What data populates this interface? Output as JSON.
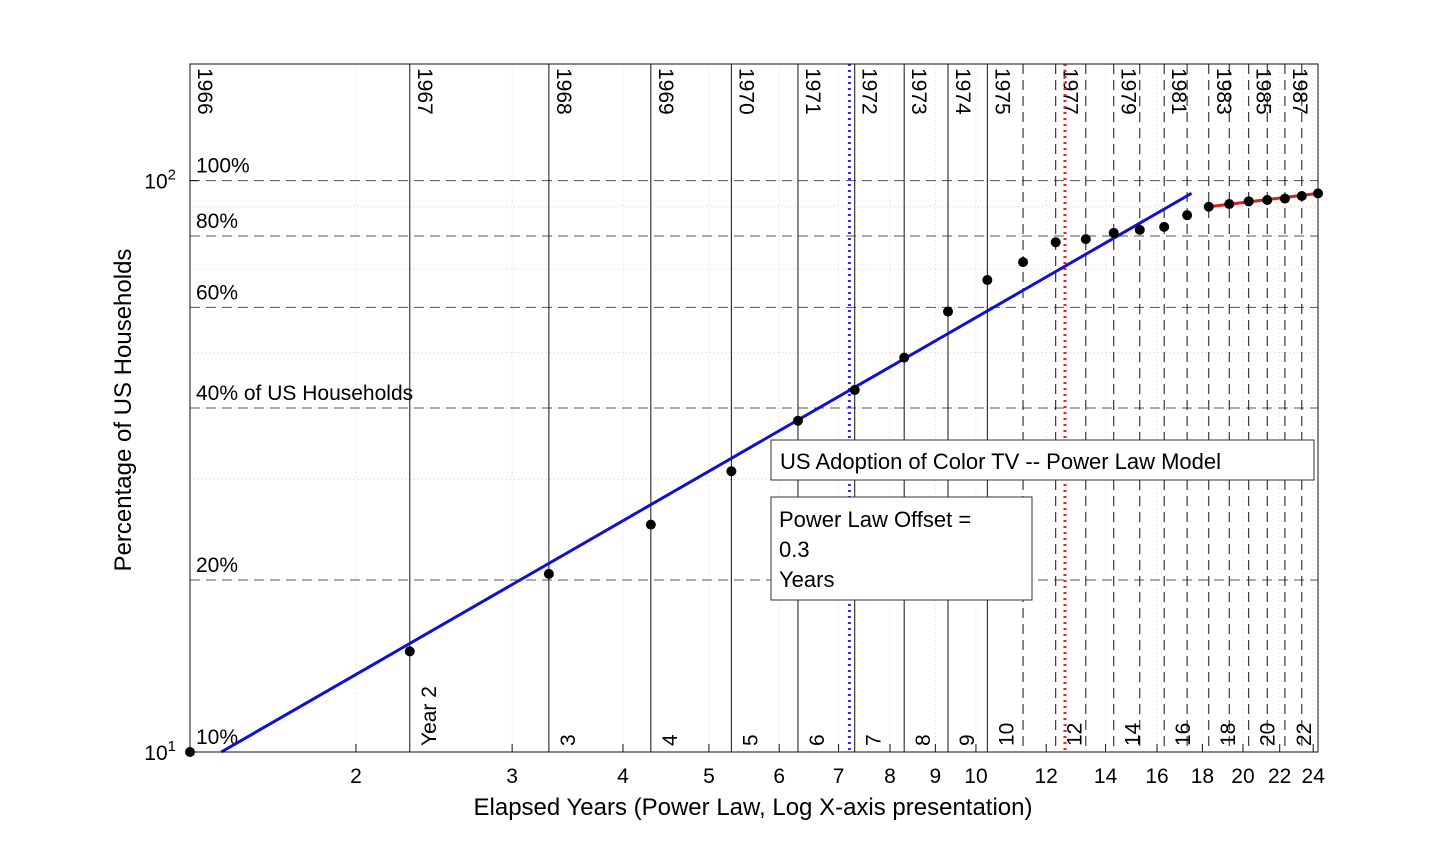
{
  "chart_data": {
    "type": "scatter",
    "title": "US Adoption of Color TV -- Power Law Model",
    "offset_note": [
      "Power Law Offset =",
      "0.3",
      "Years"
    ],
    "xlabel": "Elapsed Years (Power Law, Log X-axis presentation)",
    "ylabel": "Percentage of US Households",
    "x_scale": "log",
    "y_scale": "log",
    "xlim": [
      1.3,
      24.3
    ],
    "ylim": [
      10,
      160
    ],
    "x_ticks": [
      {
        "v": 2,
        "label": "2"
      },
      {
        "v": 3,
        "label": "3"
      },
      {
        "v": 4,
        "label": "4"
      },
      {
        "v": 5,
        "label": "5"
      },
      {
        "v": 6,
        "label": "6"
      },
      {
        "v": 7,
        "label": "7"
      },
      {
        "v": 8,
        "label": "8"
      },
      {
        "v": 9,
        "label": "9"
      },
      {
        "v": 10,
        "label": "10"
      },
      {
        "v": 12,
        "label": "12"
      },
      {
        "v": 14,
        "label": "14"
      },
      {
        "v": 16,
        "label": "16"
      },
      {
        "v": 18,
        "label": "18"
      },
      {
        "v": 20,
        "label": "20"
      },
      {
        "v": 22,
        "label": "22"
      },
      {
        "v": 24,
        "label": "24"
      }
    ],
    "y_ticks": [
      {
        "v": 10,
        "base": "10",
        "exp": "1"
      },
      {
        "v": 100,
        "base": "10",
        "exp": "2"
      }
    ],
    "percent_lines": [
      {
        "v": 100,
        "label": "100%"
      },
      {
        "v": 80,
        "label": "80%"
      },
      {
        "v": 60,
        "label": "60%"
      },
      {
        "v": 40,
        "label": "40% of US Households"
      },
      {
        "v": 20,
        "label": "20%"
      },
      {
        "v": 10,
        "label": "10%"
      }
    ],
    "year_lines": [
      {
        "x": 1.3,
        "year": "1966",
        "elapsed": ""
      },
      {
        "x": 2.3,
        "year": "1967",
        "elapsed": "Year 2"
      },
      {
        "x": 3.3,
        "year": "1968",
        "elapsed": "3"
      },
      {
        "x": 4.3,
        "year": "1969",
        "elapsed": "4"
      },
      {
        "x": 5.3,
        "year": "1970",
        "elapsed": "5"
      },
      {
        "x": 6.3,
        "year": "1971",
        "elapsed": "6"
      },
      {
        "x": 7.3,
        "year": "1972",
        "elapsed": "7"
      },
      {
        "x": 8.3,
        "year": "1973",
        "elapsed": "8"
      },
      {
        "x": 9.3,
        "year": "1974",
        "elapsed": "9"
      },
      {
        "x": 10.3,
        "year": "1975",
        "elapsed": "10"
      },
      {
        "x": 11.3,
        "year": "",
        "elapsed": ""
      },
      {
        "x": 12.3,
        "year": "1977",
        "elapsed": "12"
      },
      {
        "x": 13.3,
        "year": "",
        "elapsed": ""
      },
      {
        "x": 14.3,
        "year": "1979",
        "elapsed": "14"
      },
      {
        "x": 15.3,
        "year": "",
        "elapsed": ""
      },
      {
        "x": 16.3,
        "year": "1981",
        "elapsed": "16"
      },
      {
        "x": 17.3,
        "year": "",
        "elapsed": ""
      },
      {
        "x": 18.3,
        "year": "1983",
        "elapsed": "18"
      },
      {
        "x": 19.3,
        "year": "",
        "elapsed": ""
      },
      {
        "x": 20.3,
        "year": "1985",
        "elapsed": "20"
      },
      {
        "x": 21.3,
        "year": "",
        "elapsed": ""
      },
      {
        "x": 22.3,
        "year": "1987",
        "elapsed": "22"
      },
      {
        "x": 23.3,
        "year": "",
        "elapsed": ""
      },
      {
        "x": 24.3,
        "year": "",
        "elapsed": ""
      }
    ],
    "series": [
      {
        "kind": "points",
        "color": "#000000",
        "x": [
          1.3,
          2.3,
          3.3,
          4.3,
          5.3,
          6.3,
          7.3,
          8.3,
          9.3,
          10.3,
          11.3,
          12.3,
          13.3,
          14.3,
          15.3,
          16.3,
          17.3,
          18.3,
          19.3,
          20.3,
          21.3,
          22.3,
          23.3,
          24.3
        ],
        "y": [
          10,
          15,
          20.5,
          25,
          31,
          38,
          43,
          49,
          59,
          67,
          72,
          78,
          79,
          81,
          82,
          83,
          87,
          90,
          91,
          92,
          92.5,
          93,
          94,
          95
        ]
      },
      {
        "kind": "fit",
        "color": "#1010d0",
        "x": [
          1.41,
          17.5
        ],
        "y": [
          10,
          95
        ]
      },
      {
        "kind": "fit",
        "color": "#e01c1c",
        "x": [
          18.3,
          24.3
        ],
        "y": [
          90,
          95
        ]
      }
    ],
    "markers": [
      {
        "x": 7.2,
        "color": "#2a2aff"
      },
      {
        "x": 12.6,
        "color": "#ff1a1a"
      }
    ],
    "grid": true,
    "legend": "none"
  }
}
